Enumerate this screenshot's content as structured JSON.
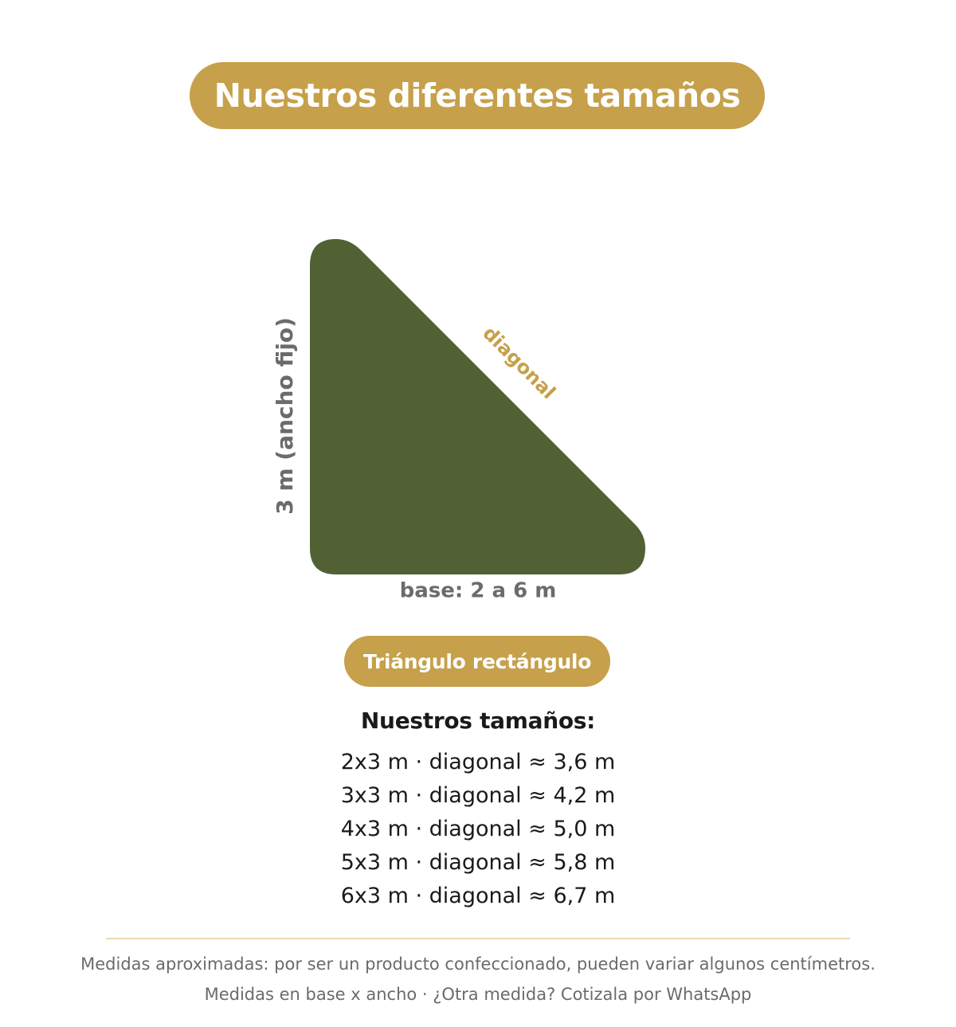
{
  "header": {
    "title": "Nuestros diferentes tamaños"
  },
  "diagram": {
    "shape_color": "#516134",
    "accent_color": "#c6a04a",
    "side_label": "3 m (ancho fijo)",
    "base_label": "base: 2 a 6 m",
    "diagonal_label": "diagonal"
  },
  "shape_name": "Triángulo rectángulo",
  "sizes": {
    "heading": "Nuestros tamaños:",
    "items": [
      "2x3 m · diagonal ≈ 3,6 m",
      "3x3 m · diagonal ≈ 4,2 m",
      "4x3 m · diagonal ≈ 5,0 m",
      "5x3 m · diagonal ≈ 5,8 m",
      "6x3 m · diagonal ≈ 6,7 m"
    ]
  },
  "footer": {
    "note_1": "Medidas aproximadas: por ser un producto confeccionado, pueden variar algunos centímetros.",
    "note_2": "Medidas en base x ancho · ¿Otra medida? Cotizala por WhatsApp"
  }
}
